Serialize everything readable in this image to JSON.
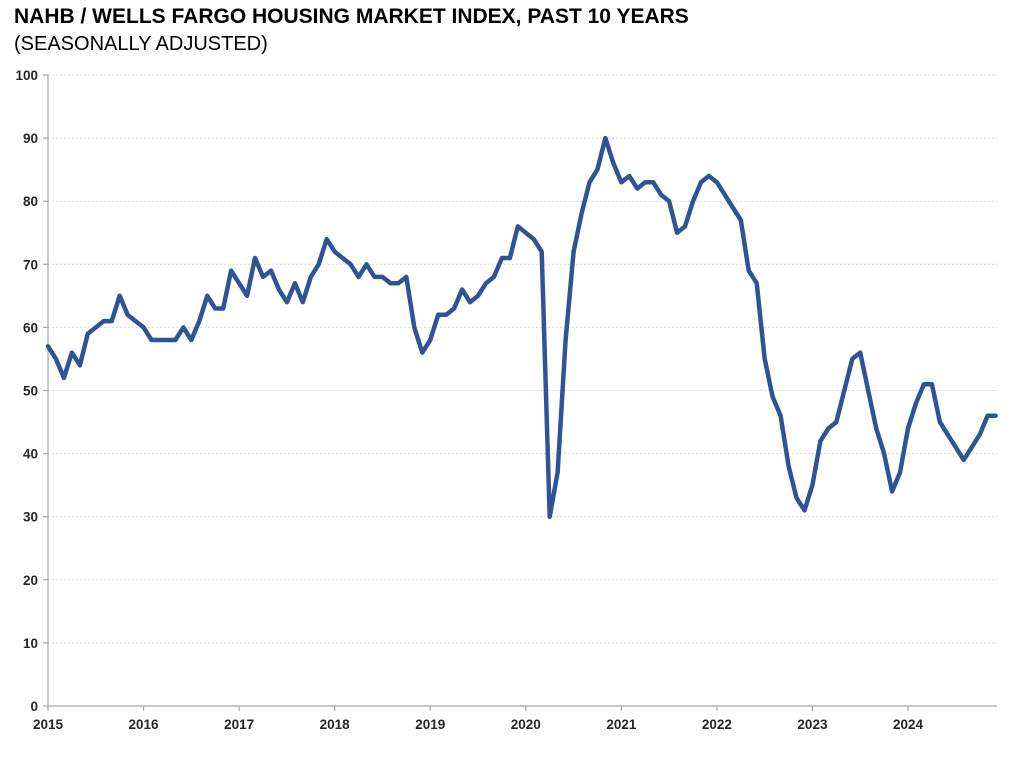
{
  "chart": {
    "title": "NAHB / WELLS FARGO HOUSING MARKET INDEX, PAST 10 YEARS",
    "subtitle": "(SEASONALLY ADJUSTED)"
  },
  "colors": {
    "line": "#2F5496",
    "grid": "#D9D9D9",
    "axis": "#A6A6A6",
    "tick_text": "#262626"
  },
  "chart_data": {
    "type": "line",
    "title": "NAHB / WELLS FARGO HOUSING MARKET INDEX, PAST 10 YEARS",
    "subtitle": "(SEASONALLY ADJUSTED)",
    "x_frequency": "monthly",
    "x_range": [
      "2015-01",
      "2024-12"
    ],
    "xticklabels": [
      "2015",
      "2016",
      "2017",
      "2018",
      "2019",
      "2020",
      "2021",
      "2022",
      "2023",
      "2024"
    ],
    "yticks": [
      0,
      10,
      20,
      30,
      40,
      50,
      60,
      70,
      80,
      90,
      100
    ],
    "ylim": [
      0,
      100
    ],
    "grid": "horizontal-dotted",
    "legend_position": "none",
    "series": [
      {
        "name": "NAHB / Wells Fargo Housing Market Index (seasonally adjusted)",
        "color": "#2F5496",
        "values": [
          57,
          55,
          52,
          56,
          54,
          59,
          60,
          61,
          61,
          65,
          62,
          61,
          60,
          58,
          58,
          58,
          58,
          60,
          58,
          61,
          65,
          63,
          63,
          69,
          67,
          65,
          71,
          68,
          69,
          66,
          64,
          67,
          64,
          68,
          70,
          74,
          72,
          71,
          70,
          68,
          70,
          68,
          68,
          67,
          67,
          68,
          60,
          56,
          58,
          62,
          62,
          63,
          66,
          64,
          65,
          67,
          68,
          71,
          71,
          76,
          75,
          74,
          72,
          30,
          37,
          58,
          72,
          78,
          83,
          85,
          90,
          86,
          83,
          84,
          82,
          83,
          83,
          81,
          80,
          75,
          76,
          80,
          83,
          84,
          83,
          81,
          79,
          77,
          69,
          67,
          55,
          49,
          46,
          38,
          33,
          31,
          35,
          42,
          44,
          45,
          50,
          55,
          56,
          50,
          44,
          40,
          34,
          37,
          44,
          48,
          51,
          51,
          45,
          43,
          41,
          39,
          41,
          43,
          46,
          46
        ]
      }
    ]
  }
}
